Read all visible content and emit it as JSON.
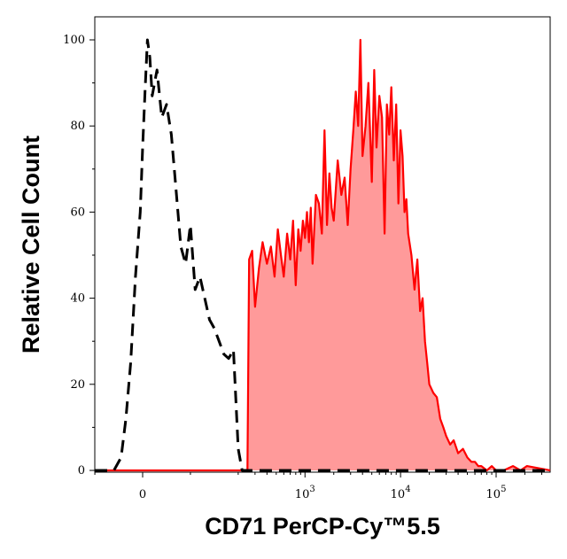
{
  "chart_data": {
    "type": "area",
    "xlabel": "CD71 PerCP-Cy™5.5",
    "ylabel": "Relative Cell Count",
    "x_scale": "biexponential",
    "ylim": [
      0,
      100
    ],
    "y_ticks": [
      {
        "value": 0,
        "label": "0"
      },
      {
        "value": 20,
        "label": "20"
      },
      {
        "value": 40,
        "label": "40"
      },
      {
        "value": 60,
        "label": "60"
      },
      {
        "value": 80,
        "label": "80"
      },
      {
        "value": 100,
        "label": "100"
      }
    ],
    "x_ticks": [
      {
        "value": 0,
        "label": "0",
        "exp": ""
      },
      {
        "value": 1000,
        "label": "10",
        "exp": "3"
      },
      {
        "value": 10000,
        "label": "10",
        "exp": "4"
      },
      {
        "value": 100000,
        "label": "10",
        "exp": "5"
      }
    ],
    "series": [
      {
        "style": "dashed-outline",
        "color": "#000000",
        "x": [
          -60,
          -45,
          -35,
          -25,
          -15,
          -5,
          0,
          5,
          10,
          15,
          20,
          30,
          40,
          50,
          60,
          70,
          80,
          90,
          100,
          110,
          120,
          130,
          140,
          150,
          160,
          170,
          180,
          190,
          200,
          220
        ],
        "y": [
          0,
          3,
          12,
          25,
          45,
          60,
          75,
          88,
          100,
          96,
          87,
          93,
          82,
          85,
          78,
          65,
          52,
          48,
          57,
          42,
          45,
          40,
          35,
          33,
          30,
          27,
          26,
          28,
          5,
          0
        ]
      },
      {
        "style": "filled",
        "color": "#ff0000",
        "fill": "#ff9a9a",
        "x": [
          250,
          260,
          280,
          300,
          330,
          360,
          400,
          440,
          480,
          520,
          560,
          600,
          650,
          700,
          750,
          800,
          850,
          900,
          950,
          1000,
          1050,
          1100,
          1150,
          1200,
          1300,
          1400,
          1500,
          1600,
          1700,
          1800,
          1900,
          2000,
          2200,
          2400,
          2600,
          2800,
          3000,
          3200,
          3400,
          3600,
          3800,
          4000,
          4300,
          4600,
          5000,
          5300,
          5600,
          6000,
          6400,
          6800,
          7200,
          7600,
          8000,
          8500,
          9000,
          9500,
          10000,
          10500,
          11000,
          11500,
          12000,
          13000,
          14000,
          15000,
          16000,
          17000,
          18000,
          19000,
          20000,
          22000,
          24000,
          26000,
          28000,
          30000,
          33000,
          36000,
          40000,
          45000,
          50000,
          55000,
          60000,
          65000,
          70000,
          80000,
          90000,
          100000,
          120000,
          150000,
          180000,
          210000
        ],
        "y": [
          0,
          49,
          51,
          38,
          47,
          53,
          48,
          52,
          45,
          56,
          50,
          45,
          55,
          49,
          58,
          43,
          56,
          51,
          58,
          54,
          60,
          53,
          61,
          48,
          64,
          62,
          55,
          79,
          57,
          69,
          61,
          58,
          72,
          64,
          68,
          57,
          70,
          79,
          88,
          80,
          100,
          73,
          80,
          90,
          67,
          93,
          75,
          87,
          82,
          55,
          85,
          78,
          89,
          72,
          85,
          62,
          79,
          73,
          60,
          63,
          55,
          50,
          42,
          49,
          37,
          40,
          30,
          25,
          20,
          18,
          17,
          12,
          10,
          8,
          6,
          7,
          4,
          5,
          3,
          2,
          2,
          1,
          1,
          0,
          1,
          0,
          0,
          1,
          0,
          1
        ]
      }
    ]
  }
}
